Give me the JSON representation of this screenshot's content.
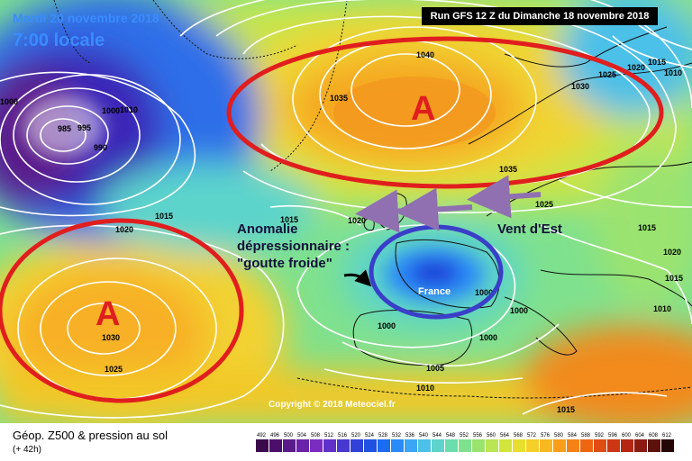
{
  "header": {
    "date_line": "Mardi 20 novembre 2018",
    "time_line": "7:00 locale",
    "run_line": "Run GFS 12 Z du Dimanche 18 novembre 2018"
  },
  "annotations": {
    "anomaly_1": "Anomalie",
    "anomaly_2": "dépressionnaire :",
    "anomaly_3": "\"goutte froide\"",
    "east_wind": "Vent d'Est",
    "high_1": "A",
    "high_2": "A",
    "france": "France"
  },
  "isobars": {
    "l1": "1040",
    "l2": "1035",
    "l3": "1030",
    "l4": "1025",
    "l5": "1020",
    "l6": "1015",
    "l7": "1010",
    "l8": "1035",
    "l9": "1025",
    "l10": "1020",
    "l11": "1015",
    "l12": "1010",
    "l13": "1000",
    "l14": "985",
    "l15": "990",
    "l16": "995",
    "l17": "1020",
    "l18": "1015",
    "l19": "1030",
    "l20": "1025",
    "l21": "1000",
    "l22": "1000",
    "l23": "1005",
    "l24": "1010",
    "l25": "1000",
    "l26": "1015",
    "l27": "1020",
    "l28": "1015",
    "l29": "1025",
    "l30": "1010",
    "l31": "1015",
    "l32": "1000",
    "l33": "1000"
  },
  "copyright": "Copyright © 2018 Meteociel.fr",
  "legend": {
    "title": "Géop. Z500 & pression au sol",
    "subtitle": "(+ 42h)",
    "scale_values": [
      "492",
      "496",
      "500",
      "504",
      "508",
      "512",
      "516",
      "520",
      "524",
      "528",
      "532",
      "536",
      "540",
      "544",
      "548",
      "552",
      "556",
      "560",
      "564",
      "568",
      "572",
      "576",
      "580",
      "584",
      "588",
      "592",
      "596",
      "600",
      "604",
      "608",
      "612"
    ],
    "scale_colors": [
      "#3a0a4a",
      "#4b0f6b",
      "#5a1a8c",
      "#6a22a8",
      "#7a2cc0",
      "#6030c8",
      "#4838d0",
      "#3040d8",
      "#1f52e0",
      "#1a6cf0",
      "#2a8af8",
      "#3aa6f5",
      "#4cc0e8",
      "#5cd4cc",
      "#6adcae",
      "#7fe18e",
      "#9be36f",
      "#b8e552",
      "#d3e43c",
      "#e8de30",
      "#f5ce28",
      "#f8b820",
      "#f89e1a",
      "#f48215",
      "#ee6612",
      "#e04c12",
      "#cc3612",
      "#b42612",
      "#8c1a10",
      "#5c120a",
      "#240606"
    ]
  }
}
